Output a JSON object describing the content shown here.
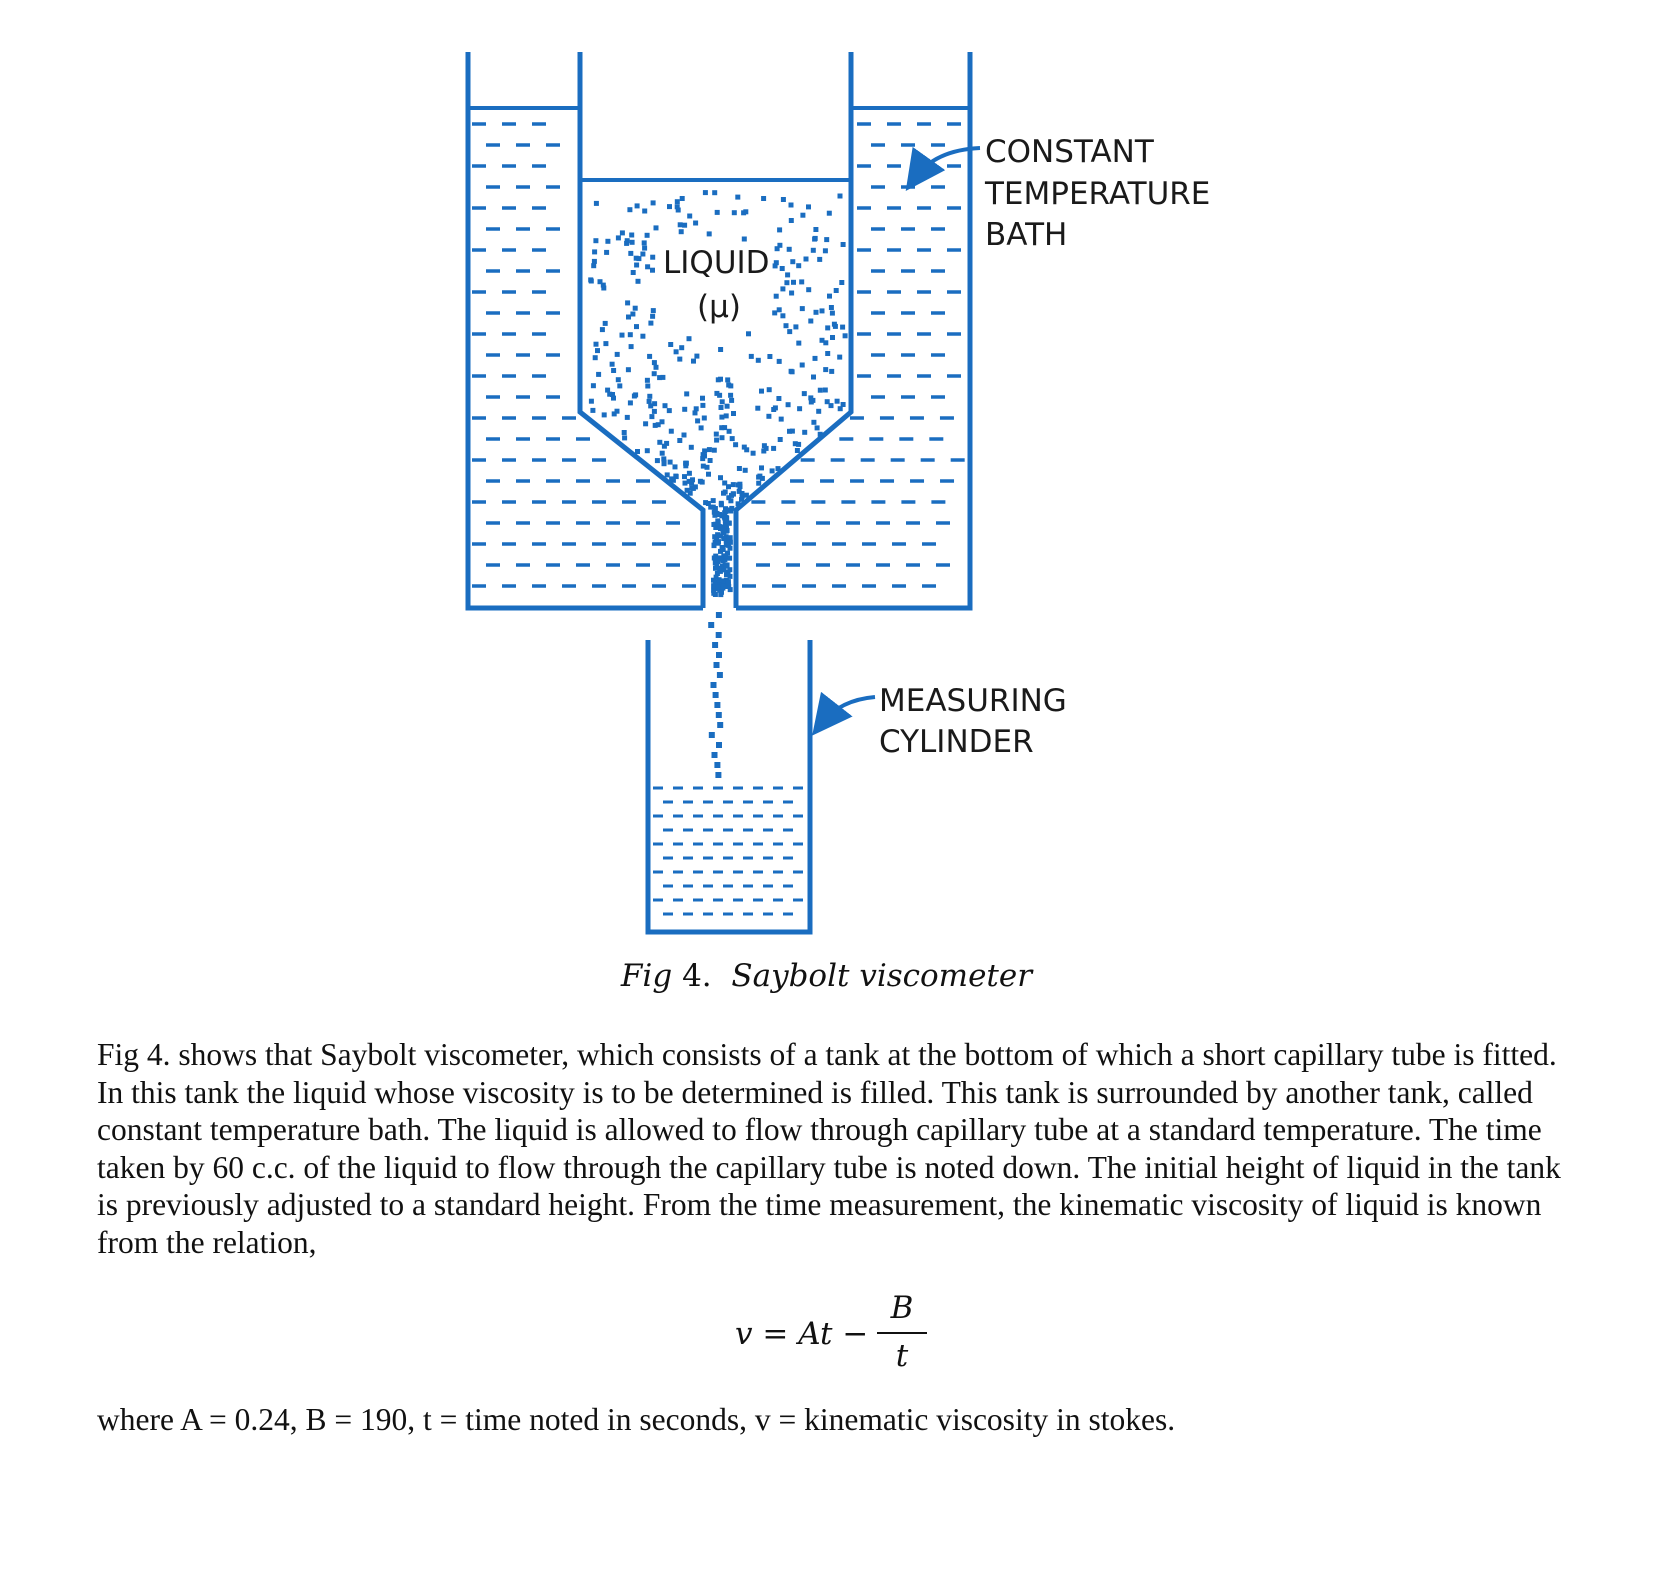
{
  "diagram": {
    "labels": {
      "liquid": "LIQUID",
      "liquid_symbol": "(μ)",
      "bath_line1": "CONSTANT",
      "bath_line2": "TEMPERATURE",
      "bath_line3": "BATH",
      "cylinder_line1": "MEASURING",
      "cylinder_line2": "CYLINDER"
    },
    "colors": {
      "stroke": "#1a6dc0",
      "text": "#1a1a1a"
    }
  },
  "caption": {
    "prefix": "Fig",
    "number": "4.",
    "title": "Saybolt viscometer"
  },
  "body": {
    "paragraph": "Fig 4. shows that Saybolt viscometer, which consists of a tank at the bottom of which a short capillary tube is fitted. In this tank the liquid whose viscosity is to be determined is filled. This tank is surrounded by another tank, called constant temperature bath. The liquid is allowed to flow through capillary tube at a standard temperature. The time taken by 60 c.c. of the liquid to flow through the capillary tube is noted down. The initial height of liquid in the tank is previously adjusted to a standard height. From the time measurement, the kinematic viscosity of liquid is known from the relation,",
    "formula": {
      "lhs": "v = At −",
      "numerator": "B",
      "denominator": "t"
    },
    "where": "where A = 0.24, B = 190, t = time noted in seconds, v = kinematic viscosity in stokes."
  }
}
